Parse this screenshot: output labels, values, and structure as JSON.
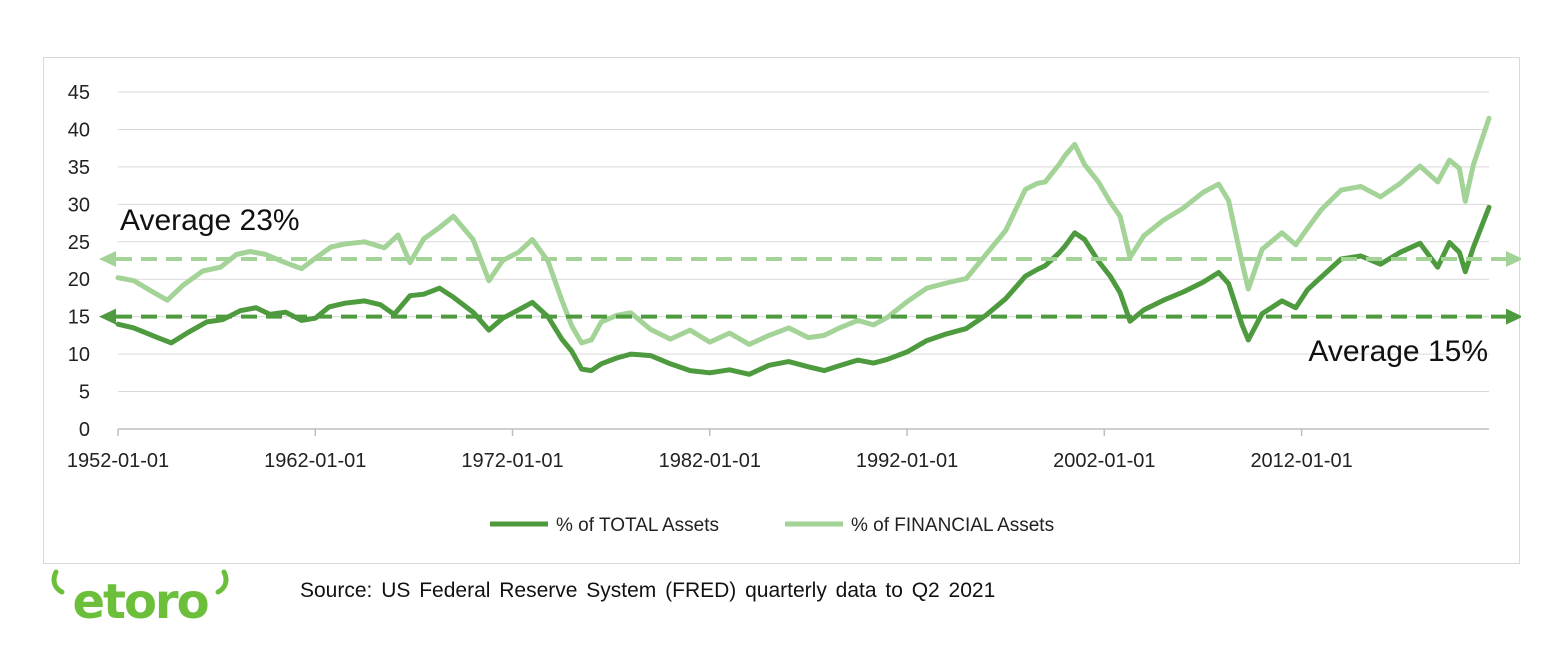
{
  "chart_data": {
    "type": "line",
    "x_tick_labels": [
      "1952-01-01",
      "1962-01-01",
      "1972-01-01",
      "1982-01-01",
      "1992-01-01",
      "2002-01-01",
      "2012-01-01"
    ],
    "xlim": [
      1952.0,
      2021.5
    ],
    "ylim": [
      0,
      45
    ],
    "y_ticks": [
      0,
      5,
      10,
      15,
      20,
      25,
      30,
      35,
      40,
      45
    ],
    "grid": "horizontal",
    "legend_position": "bottom",
    "series": [
      {
        "name": "% of TOTAL Assets",
        "color": "#4e9a3e",
        "points": [
          [
            1952.0,
            14.0
          ],
          [
            1952.8,
            13.5
          ],
          [
            1954.0,
            12.2
          ],
          [
            1954.7,
            11.5
          ],
          [
            1955.5,
            12.8
          ],
          [
            1956.5,
            14.3
          ],
          [
            1957.3,
            14.6
          ],
          [
            1958.2,
            15.8
          ],
          [
            1959.0,
            16.2
          ],
          [
            1959.7,
            15.3
          ],
          [
            1960.5,
            15.6
          ],
          [
            1961.3,
            14.5
          ],
          [
            1962.0,
            14.8
          ],
          [
            1962.7,
            16.3
          ],
          [
            1963.5,
            16.8
          ],
          [
            1964.5,
            17.1
          ],
          [
            1965.3,
            16.6
          ],
          [
            1966.0,
            15.3
          ],
          [
            1966.8,
            17.8
          ],
          [
            1967.5,
            18.0
          ],
          [
            1968.3,
            18.8
          ],
          [
            1969.0,
            17.6
          ],
          [
            1970.0,
            15.6
          ],
          [
            1970.8,
            13.2
          ],
          [
            1971.5,
            14.8
          ],
          [
            1972.3,
            15.9
          ],
          [
            1973.0,
            16.9
          ],
          [
            1973.8,
            15.0
          ],
          [
            1974.5,
            12.0
          ],
          [
            1975.0,
            10.4
          ],
          [
            1975.5,
            8.0
          ],
          [
            1976.0,
            7.8
          ],
          [
            1976.5,
            8.7
          ],
          [
            1977.3,
            9.5
          ],
          [
            1978.0,
            10.0
          ],
          [
            1979.0,
            9.8
          ],
          [
            1980.0,
            8.7
          ],
          [
            1981.0,
            7.8
          ],
          [
            1982.0,
            7.5
          ],
          [
            1983.0,
            7.9
          ],
          [
            1984.0,
            7.3
          ],
          [
            1985.0,
            8.5
          ],
          [
            1986.0,
            9.0
          ],
          [
            1987.0,
            8.3
          ],
          [
            1987.8,
            7.8
          ],
          [
            1988.5,
            8.4
          ],
          [
            1989.5,
            9.2
          ],
          [
            1990.3,
            8.8
          ],
          [
            1991.0,
            9.3
          ],
          [
            1992.0,
            10.3
          ],
          [
            1993.0,
            11.8
          ],
          [
            1994.0,
            12.7
          ],
          [
            1995.0,
            13.4
          ],
          [
            1996.0,
            15.2
          ],
          [
            1997.0,
            17.4
          ],
          [
            1998.0,
            20.4
          ],
          [
            1998.6,
            21.3
          ],
          [
            1999.0,
            21.8
          ],
          [
            1999.7,
            23.5
          ],
          [
            2000.0,
            24.4
          ],
          [
            2000.5,
            26.2
          ],
          [
            2001.0,
            25.3
          ],
          [
            2001.7,
            22.4
          ],
          [
            2002.3,
            20.4
          ],
          [
            2002.8,
            18.2
          ],
          [
            2003.3,
            14.4
          ],
          [
            2004.0,
            15.9
          ],
          [
            2005.0,
            17.2
          ],
          [
            2006.0,
            18.3
          ],
          [
            2007.0,
            19.6
          ],
          [
            2007.8,
            20.9
          ],
          [
            2008.3,
            19.4
          ],
          [
            2009.0,
            13.8
          ],
          [
            2009.3,
            11.9
          ],
          [
            2010.0,
            15.4
          ],
          [
            2011.0,
            17.1
          ],
          [
            2011.7,
            16.2
          ],
          [
            2012.3,
            18.6
          ],
          [
            2013.0,
            20.3
          ],
          [
            2014.0,
            22.7
          ],
          [
            2015.0,
            23.1
          ],
          [
            2016.0,
            22.0
          ],
          [
            2017.0,
            23.6
          ],
          [
            2018.0,
            24.8
          ],
          [
            2018.9,
            21.6
          ],
          [
            2019.5,
            24.9
          ],
          [
            2020.0,
            23.6
          ],
          [
            2020.3,
            21.0
          ],
          [
            2020.7,
            24.2
          ],
          [
            2021.5,
            29.6
          ]
        ]
      },
      {
        "name": "% of FINANCIAL Assets",
        "color": "#a3d397",
        "points": [
          [
            1952.0,
            20.2
          ],
          [
            1952.8,
            19.8
          ],
          [
            1953.7,
            18.4
          ],
          [
            1954.5,
            17.2
          ],
          [
            1955.3,
            19.2
          ],
          [
            1956.3,
            21.1
          ],
          [
            1957.2,
            21.6
          ],
          [
            1958.0,
            23.3
          ],
          [
            1958.7,
            23.7
          ],
          [
            1959.5,
            23.3
          ],
          [
            1960.3,
            22.4
          ],
          [
            1961.3,
            21.4
          ],
          [
            1962.0,
            22.8
          ],
          [
            1962.8,
            24.3
          ],
          [
            1963.5,
            24.7
          ],
          [
            1964.5,
            25.0
          ],
          [
            1965.5,
            24.2
          ],
          [
            1966.2,
            25.9
          ],
          [
            1966.8,
            22.2
          ],
          [
            1967.5,
            25.4
          ],
          [
            1968.3,
            26.9
          ],
          [
            1969.0,
            28.4
          ],
          [
            1970.0,
            25.3
          ],
          [
            1970.8,
            19.8
          ],
          [
            1971.5,
            22.5
          ],
          [
            1972.3,
            23.6
          ],
          [
            1973.0,
            25.3
          ],
          [
            1973.8,
            22.4
          ],
          [
            1974.5,
            17.2
          ],
          [
            1975.0,
            13.8
          ],
          [
            1975.5,
            11.5
          ],
          [
            1976.0,
            11.9
          ],
          [
            1976.5,
            14.3
          ],
          [
            1977.3,
            15.2
          ],
          [
            1978.0,
            15.5
          ],
          [
            1979.0,
            13.3
          ],
          [
            1980.0,
            12.0
          ],
          [
            1981.0,
            13.2
          ],
          [
            1982.0,
            11.6
          ],
          [
            1983.0,
            12.8
          ],
          [
            1984.0,
            11.3
          ],
          [
            1985.0,
            12.5
          ],
          [
            1986.0,
            13.5
          ],
          [
            1987.0,
            12.2
          ],
          [
            1987.8,
            12.5
          ],
          [
            1988.5,
            13.4
          ],
          [
            1989.5,
            14.5
          ],
          [
            1990.3,
            13.9
          ],
          [
            1991.0,
            14.9
          ],
          [
            1992.0,
            17.0
          ],
          [
            1993.0,
            18.8
          ],
          [
            1994.0,
            19.5
          ],
          [
            1995.0,
            20.1
          ],
          [
            1996.0,
            23.3
          ],
          [
            1997.0,
            26.5
          ],
          [
            1998.0,
            32.0
          ],
          [
            1998.6,
            32.8
          ],
          [
            1999.0,
            33.0
          ],
          [
            1999.7,
            35.3
          ],
          [
            2000.0,
            36.5
          ],
          [
            2000.5,
            38.0
          ],
          [
            2001.0,
            35.3
          ],
          [
            2001.7,
            33.0
          ],
          [
            2002.3,
            30.3
          ],
          [
            2002.8,
            28.4
          ],
          [
            2003.3,
            22.9
          ],
          [
            2004.0,
            25.8
          ],
          [
            2005.0,
            27.9
          ],
          [
            2006.0,
            29.5
          ],
          [
            2007.0,
            31.6
          ],
          [
            2007.8,
            32.7
          ],
          [
            2008.3,
            30.5
          ],
          [
            2009.0,
            22.0
          ],
          [
            2009.3,
            18.7
          ],
          [
            2010.0,
            24.0
          ],
          [
            2011.0,
            26.2
          ],
          [
            2011.7,
            24.6
          ],
          [
            2012.3,
            26.8
          ],
          [
            2013.0,
            29.3
          ],
          [
            2014.0,
            31.9
          ],
          [
            2015.0,
            32.4
          ],
          [
            2016.0,
            31.0
          ],
          [
            2017.0,
            32.8
          ],
          [
            2018.0,
            35.1
          ],
          [
            2018.9,
            33.0
          ],
          [
            2019.5,
            35.9
          ],
          [
            2020.0,
            34.8
          ],
          [
            2020.3,
            30.4
          ],
          [
            2020.7,
            35.2
          ],
          [
            2021.5,
            41.5
          ]
        ]
      }
    ],
    "reference_lines": [
      {
        "label": "Average 23%",
        "value": 22.7,
        "color": "#a3d397"
      },
      {
        "label": "Average 15%",
        "value": 15.0,
        "color": "#4e9a3e"
      }
    ]
  },
  "source": "Source: US Federal Reserve System (FRED) quarterly data to Q2 2021",
  "logo": {
    "text": "etoro",
    "color": "#6bbf3a"
  }
}
